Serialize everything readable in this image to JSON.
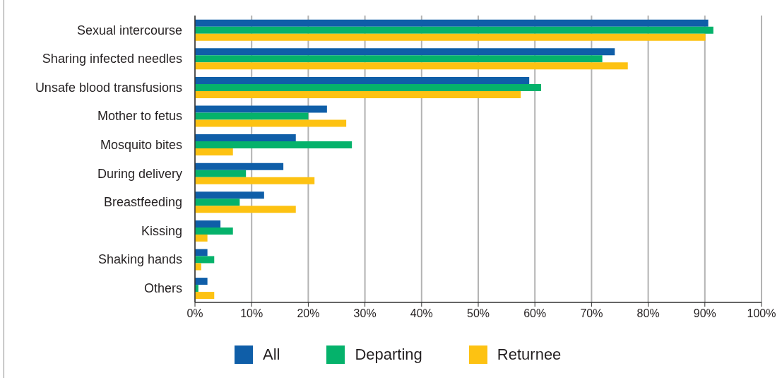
{
  "chart_data": {
    "type": "bar",
    "orientation": "horizontal",
    "categories": [
      "Sexual intercourse",
      "Sharing infected needles",
      "Unsafe blood transfusions",
      "Mother to fetus",
      "Mosquito bites",
      "During delivery",
      "Breastfeeding",
      "Kissing",
      "Shaking hands",
      "Others"
    ],
    "series": [
      {
        "name": "All",
        "color": "#0f5ea8",
        "values": [
          90.6,
          74.1,
          59.0,
          23.3,
          17.8,
          15.6,
          12.2,
          4.5,
          2.2,
          2.2
        ]
      },
      {
        "name": "Departing",
        "color": "#05b26b",
        "values": [
          91.5,
          71.9,
          61.1,
          20.0,
          27.7,
          9.0,
          7.9,
          6.7,
          3.4,
          0.6
        ]
      },
      {
        "name": "Returnee",
        "color": "#fdc212",
        "values": [
          90.1,
          76.4,
          57.5,
          26.7,
          6.7,
          21.1,
          17.8,
          2.2,
          1.1,
          3.4
        ]
      }
    ],
    "xlim": [
      0,
      100
    ],
    "xticks": [
      {
        "value": 0,
        "label": "0%"
      },
      {
        "value": 10,
        "label": "10%"
      },
      {
        "value": 20,
        "label": "20%"
      },
      {
        "value": 30,
        "label": "30%"
      },
      {
        "value": 40,
        "label": "40%"
      },
      {
        "value": 50,
        "label": "50%"
      },
      {
        "value": 60,
        "label": "60%"
      },
      {
        "value": 70,
        "label": "70%"
      },
      {
        "value": 80,
        "label": "80%"
      },
      {
        "value": 90,
        "label": "90%"
      },
      {
        "value": 100,
        "label": "100%"
      }
    ],
    "grid": "x",
    "legend": "bottom"
  }
}
